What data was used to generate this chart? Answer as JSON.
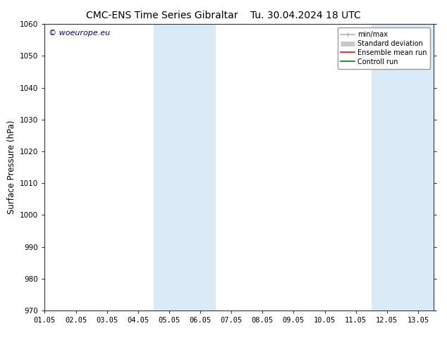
{
  "title_left": "CMC-ENS Time Series Gibraltar",
  "title_right": "Tu. 30.04.2024 18 UTC",
  "ylabel": "Surface Pressure (hPa)",
  "ylim": [
    970,
    1060
  ],
  "yticks": [
    970,
    980,
    990,
    1000,
    1010,
    1020,
    1030,
    1040,
    1050,
    1060
  ],
  "xlim": [
    0.0,
    12.5
  ],
  "xtick_labels": [
    "01.05",
    "02.05",
    "03.05",
    "04.05",
    "05.05",
    "06.05",
    "07.05",
    "08.05",
    "09.05",
    "10.05",
    "11.05",
    "12.05",
    "13.05"
  ],
  "xtick_positions": [
    0,
    1,
    2,
    3,
    4,
    5,
    6,
    7,
    8,
    9,
    10,
    11,
    12
  ],
  "shaded_regions": [
    {
      "xmin": 3.5,
      "xmax": 5.5,
      "color": "#daeaf7"
    },
    {
      "xmin": 10.5,
      "xmax": 12.5,
      "color": "#daeaf7"
    }
  ],
  "watermark_text": "© woeurope.eu",
  "watermark_color": "#0000cc",
  "background_color": "#ffffff",
  "legend_entries": [
    {
      "label": "min/max",
      "color": "#b0b0b0",
      "lw": 1.2
    },
    {
      "label": "Standard deviation",
      "color": "#c8c8c8",
      "lw": 5
    },
    {
      "label": "Ensemble mean run",
      "color": "#ff0000",
      "lw": 1.2
    },
    {
      "label": "Controll run",
      "color": "#008000",
      "lw": 1.2
    }
  ],
  "title_fontsize": 10,
  "tick_fontsize": 7.5,
  "ylabel_fontsize": 8.5,
  "watermark_fontsize": 8,
  "legend_fontsize": 7
}
